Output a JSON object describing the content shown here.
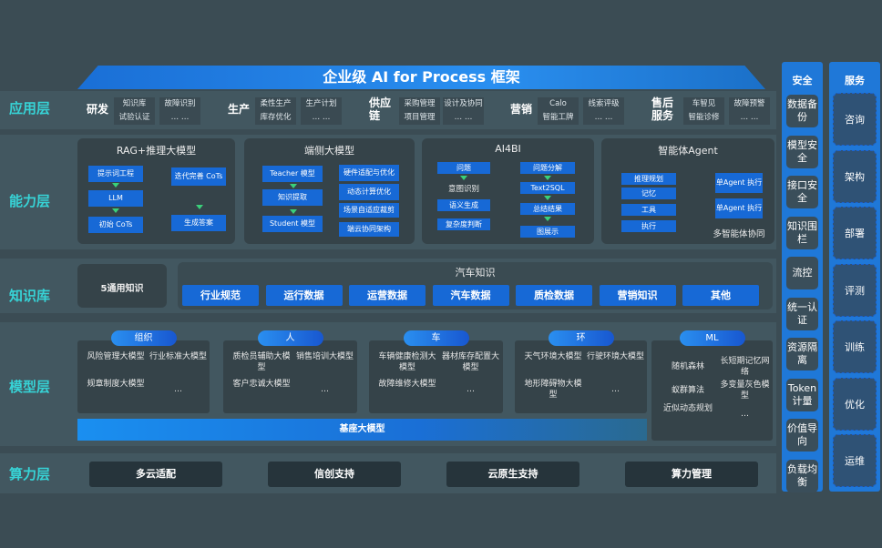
{
  "title": "企业级 AI for Process 框架",
  "layers": {
    "app": "应用层",
    "capability": "能力层",
    "knowledge": "知识库",
    "model": "模型层",
    "compute": "算力层"
  },
  "app_sections": [
    {
      "name": "研发",
      "items": [
        "知识库",
        "故障识别",
        "试验认证",
        "… …"
      ]
    },
    {
      "name": "生产",
      "items": [
        "柔性生产",
        "生产计划",
        "库存优化",
        "… …"
      ]
    },
    {
      "name": "供应链",
      "items": [
        "采购管理",
        "设计及协同",
        "项目管理",
        "… …"
      ]
    },
    {
      "name": "营销",
      "items": [
        "Calo",
        "线索评级",
        "智能工牌",
        "… …"
      ]
    },
    {
      "name": "售后服务",
      "items": [
        "车智见",
        "故障预警",
        "智能诊修",
        "… …"
      ]
    }
  ],
  "capability": {
    "rag": {
      "title": "RAG+推理大模型",
      "items": [
        "提示词工程",
        "LLM",
        "初始 CoTs",
        "迭代完善 CoTs",
        "生成答案"
      ]
    },
    "edge": {
      "title": "端侧大模型",
      "items": [
        "Teacher 模型",
        "知识提取",
        "Student 模型",
        "硬件适配与优化",
        "动态计算优化",
        "场景自适应裁剪",
        "端云协同架构"
      ]
    },
    "ai4bi": {
      "title": "AI4BI",
      "items": [
        "问题",
        "意图识别",
        "语义生成",
        "复杂度判断",
        "问题分解",
        "Text2SQL",
        "总结结果",
        "图展示"
      ]
    },
    "agent": {
      "title": "智能体Agent",
      "items": [
        "推理规划",
        "记忆",
        "工具",
        "执行",
        "单Agent 执行",
        "单Agent 执行",
        "多智能体协同"
      ]
    }
  },
  "knowledge": {
    "general": "5通用知识",
    "auto_title": "汽车知识",
    "items": [
      "行业规范",
      "运行数据",
      "运营数据",
      "汽车数据",
      "质检数据",
      "营销知识",
      "其他"
    ]
  },
  "model_groups": [
    {
      "name": "组织",
      "items": [
        "风险管理大模型",
        "行业标准大模型",
        "规章制度大模型",
        "…"
      ]
    },
    {
      "name": "人",
      "items": [
        "质检员辅助大模型",
        "销售培训大模型",
        "客户忠诚大模型",
        "…"
      ]
    },
    {
      "name": "车",
      "items": [
        "车辆健康检测大模型",
        "器材库存配置大模型",
        "故障维修大模型",
        "…"
      ]
    },
    {
      "name": "环",
      "items": [
        "天气环境大模型",
        "行驶环境大模型",
        "地形障碍物大模型",
        "…"
      ]
    },
    {
      "name": "ML",
      "items": [
        "随机森林",
        "长短期记忆网络",
        "蚁群算法",
        "多变量灰色模型",
        "近似动态规划",
        "…"
      ]
    }
  ],
  "base_model": "基座大模型",
  "compute": [
    "多云适配",
    "信创支持",
    "云原生支持",
    "算力管理"
  ],
  "security": {
    "title": "安全",
    "items": [
      "数据备份",
      "模型安全",
      "接口安全",
      "知识围栏",
      "流控",
      "统一认证",
      "资源隔离",
      "Token计量",
      "价值导向",
      "负载均衡"
    ]
  },
  "service": {
    "title": "服务",
    "items": [
      "咨询",
      "架构",
      "部署",
      "评测",
      "训练",
      "优化",
      "运维"
    ]
  },
  "colors": {
    "background": "#3b4c54",
    "accent": "#1769d6",
    "layer_label": "#37d3d6"
  }
}
